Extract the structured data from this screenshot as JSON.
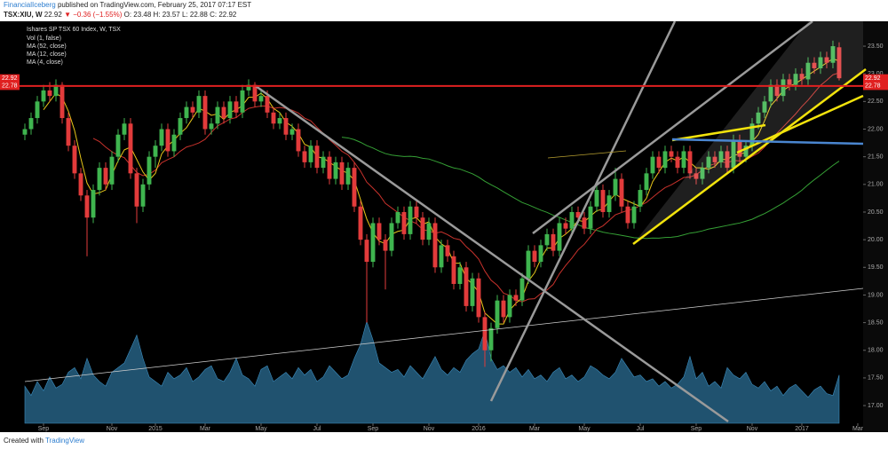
{
  "header": {
    "author": "FinancialIceberg",
    "published": "published on TradingView.com, February 25, 2017 07:17 EST",
    "symbol": "TSX:XIU, W",
    "last": "22.92",
    "change": "▼ −0.36 (−1.55%)",
    "ohlc": "O: 23.48 H: 23.57 L: 22.88 C: 22.92"
  },
  "footer": {
    "created": "Created with",
    "brand": "TradingView"
  },
  "chart_data": {
    "type": "candlestick",
    "title": "Ishares SP TSX 60 Index, W, TSX",
    "indicators": [
      {
        "name": "Vol (1, false)"
      },
      {
        "name": "MA (52, close)",
        "period": 52,
        "color": "#35a035"
      },
      {
        "name": "MA (12, close)",
        "period": 12,
        "color": "#c8322c"
      },
      {
        "name": "MA (4, close)",
        "period": 4,
        "color": "#e6c619"
      }
    ],
    "up_color": "#3fb54f",
    "down_color": "#e23b3b",
    "volume_color": "#2b6d94",
    "ylim": [
      16.68,
      23.95
    ],
    "xlim": [
      -4,
      134.86
    ],
    "grid": false,
    "yticks": [
      {
        "value": 17,
        "label": "17.00"
      },
      {
        "value": 17.5,
        "label": "17.50"
      },
      {
        "value": 18,
        "label": "18.00"
      },
      {
        "value": 18.5,
        "label": "18.50"
      },
      {
        "value": 19,
        "label": "19.00"
      },
      {
        "value": 19.5,
        "label": "19.50"
      },
      {
        "value": 20,
        "label": "20.00"
      },
      {
        "value": 20.5,
        "label": "20.50"
      },
      {
        "value": 21,
        "label": "21.00"
      },
      {
        "value": 21.5,
        "label": "21.50"
      },
      {
        "value": 22,
        "label": "22.00"
      },
      {
        "value": 22.5,
        "label": "22.50"
      },
      {
        "value": 23,
        "label": "23.00"
      },
      {
        "value": 23.5,
        "label": "23.50"
      }
    ],
    "xticks": [
      {
        "value": 3,
        "label": "Sep"
      },
      {
        "value": 14,
        "label": "Nov"
      },
      {
        "value": 21,
        "label": "2015"
      },
      {
        "value": 29,
        "label": "Mar"
      },
      {
        "value": 38,
        "label": "May"
      },
      {
        "value": 47,
        "label": "Jul"
      },
      {
        "value": 56,
        "label": "Sep"
      },
      {
        "value": 65,
        "label": "Nov"
      },
      {
        "value": 73,
        "label": "2016"
      },
      {
        "value": 82,
        "label": "Mar"
      },
      {
        "value": 90,
        "label": "May"
      },
      {
        "value": 99,
        "label": "Jul"
      },
      {
        "value": 108,
        "label": "Sep"
      },
      {
        "value": 117,
        "label": "Nov"
      },
      {
        "value": 125,
        "label": "2017"
      },
      {
        "value": 134,
        "label": "Mar"
      }
    ],
    "price_lines": [
      {
        "value": 22.92,
        "label": "22.92",
        "color": "#e02020",
        "line": false
      },
      {
        "value": 22.78,
        "label": "22.78",
        "color": "#e02020",
        "line": true
      }
    ],
    "ohlc": [
      [
        21.9,
        22.1,
        21.8,
        22.0
      ],
      [
        22.0,
        22.3,
        21.9,
        22.2
      ],
      [
        22.2,
        22.6,
        22.1,
        22.5
      ],
      [
        22.5,
        22.8,
        22.4,
        22.7
      ],
      [
        22.7,
        22.85,
        22.5,
        22.6
      ],
      [
        22.6,
        22.9,
        22.5,
        22.8
      ],
      [
        22.8,
        22.85,
        22.1,
        22.2
      ],
      [
        22.2,
        22.3,
        21.6,
        21.7
      ],
      [
        21.7,
        21.8,
        21.1,
        21.2
      ],
      [
        21.2,
        21.3,
        20.7,
        20.8
      ],
      [
        20.8,
        20.9,
        19.7,
        20.4
      ],
      [
        20.4,
        21.0,
        20.3,
        20.9
      ],
      [
        20.9,
        21.4,
        20.8,
        21.3
      ],
      [
        21.3,
        21.4,
        20.9,
        21.0
      ],
      [
        21.0,
        21.6,
        20.9,
        21.5
      ],
      [
        21.5,
        22.0,
        21.4,
        21.9
      ],
      [
        21.9,
        22.2,
        21.8,
        22.1
      ],
      [
        22.1,
        22.2,
        21.1,
        21.2
      ],
      [
        21.2,
        21.3,
        20.3,
        20.6
      ],
      [
        20.6,
        21.1,
        20.5,
        21.0
      ],
      [
        21.0,
        21.6,
        20.9,
        21.5
      ],
      [
        21.5,
        21.8,
        21.3,
        21.7
      ],
      [
        21.7,
        22.1,
        21.6,
        22.0
      ],
      [
        22.0,
        22.1,
        21.5,
        21.6
      ],
      [
        21.6,
        22.0,
        21.5,
        21.9
      ],
      [
        21.9,
        22.3,
        21.8,
        22.2
      ],
      [
        22.2,
        22.5,
        22.1,
        22.4
      ],
      [
        22.4,
        22.5,
        22.2,
        22.3
      ],
      [
        22.3,
        22.7,
        22.2,
        22.6
      ],
      [
        22.6,
        22.7,
        21.9,
        22.0
      ],
      [
        22.0,
        22.2,
        21.9,
        22.1
      ],
      [
        22.1,
        22.5,
        22.0,
        22.4
      ],
      [
        22.4,
        22.5,
        22.1,
        22.2
      ],
      [
        22.2,
        22.6,
        22.1,
        22.5
      ],
      [
        22.5,
        22.6,
        22.2,
        22.3
      ],
      [
        22.3,
        22.8,
        22.2,
        22.7
      ],
      [
        22.7,
        22.9,
        22.6,
        22.8
      ],
      [
        22.8,
        22.85,
        22.4,
        22.5
      ],
      [
        22.5,
        22.7,
        22.4,
        22.6
      ],
      [
        22.6,
        22.7,
        22.2,
        22.3
      ],
      [
        22.3,
        22.4,
        22.0,
        22.1
      ],
      [
        22.1,
        22.3,
        22.0,
        22.2
      ],
      [
        22.2,
        22.3,
        21.8,
        21.9
      ],
      [
        21.9,
        22.1,
        21.8,
        22.0
      ],
      [
        22.0,
        22.1,
        21.5,
        21.6
      ],
      [
        21.6,
        21.7,
        21.3,
        21.4
      ],
      [
        21.4,
        21.8,
        21.3,
        21.7
      ],
      [
        21.7,
        21.8,
        21.2,
        21.3
      ],
      [
        21.3,
        21.6,
        21.2,
        21.5
      ],
      [
        21.5,
        21.6,
        21.0,
        21.1
      ],
      [
        21.1,
        21.5,
        21.0,
        21.4
      ],
      [
        21.4,
        21.5,
        20.9,
        21.0
      ],
      [
        21.0,
        21.4,
        20.9,
        21.3
      ],
      [
        21.3,
        21.4,
        20.5,
        20.6
      ],
      [
        20.6,
        20.7,
        19.9,
        20.0
      ],
      [
        20.0,
        20.1,
        18.5,
        19.6
      ],
      [
        19.6,
        20.4,
        19.5,
        20.3
      ],
      [
        20.3,
        20.4,
        19.9,
        20.0
      ],
      [
        20.0,
        20.1,
        19.1,
        19.8
      ],
      [
        19.8,
        20.4,
        19.7,
        20.3
      ],
      [
        20.3,
        20.6,
        20.2,
        20.5
      ],
      [
        20.5,
        20.6,
        20.0,
        20.1
      ],
      [
        20.1,
        20.7,
        20.0,
        20.6
      ],
      [
        20.6,
        20.7,
        20.3,
        20.4
      ],
      [
        20.4,
        20.5,
        19.9,
        20.0
      ],
      [
        20.0,
        20.4,
        19.9,
        20.3
      ],
      [
        20.3,
        20.4,
        19.4,
        19.5
      ],
      [
        19.5,
        20.0,
        19.4,
        19.9
      ],
      [
        19.9,
        20.0,
        19.6,
        19.7
      ],
      [
        19.7,
        19.8,
        19.1,
        19.2
      ],
      [
        19.2,
        19.6,
        19.1,
        19.5
      ],
      [
        19.5,
        19.6,
        18.7,
        18.8
      ],
      [
        18.8,
        19.4,
        18.7,
        19.3
      ],
      [
        19.3,
        19.4,
        18.5,
        18.6
      ],
      [
        18.6,
        18.7,
        17.7,
        18.0
      ],
      [
        18.0,
        18.5,
        17.8,
        18.4
      ],
      [
        18.4,
        19.0,
        18.3,
        18.9
      ],
      [
        18.9,
        19.0,
        18.5,
        18.6
      ],
      [
        18.6,
        19.1,
        18.5,
        19.0
      ],
      [
        19.0,
        19.1,
        18.8,
        18.9
      ],
      [
        18.9,
        19.4,
        18.8,
        19.3
      ],
      [
        19.3,
        19.9,
        19.2,
        19.8
      ],
      [
        19.8,
        19.9,
        19.5,
        19.6
      ],
      [
        19.6,
        20.0,
        19.5,
        19.9
      ],
      [
        19.9,
        20.2,
        19.8,
        20.1
      ],
      [
        20.1,
        20.2,
        19.7,
        19.8
      ],
      [
        19.8,
        20.4,
        19.7,
        20.3
      ],
      [
        20.3,
        20.4,
        20.1,
        20.2
      ],
      [
        20.2,
        20.6,
        20.1,
        20.5
      ],
      [
        20.5,
        20.6,
        20.3,
        20.4
      ],
      [
        20.4,
        20.5,
        20.1,
        20.2
      ],
      [
        20.2,
        20.7,
        20.1,
        20.6
      ],
      [
        20.6,
        21.0,
        20.5,
        20.9
      ],
      [
        20.9,
        21.0,
        20.4,
        20.5
      ],
      [
        20.5,
        20.9,
        20.4,
        20.8
      ],
      [
        20.8,
        21.3,
        20.7,
        21.1
      ],
      [
        21.1,
        21.2,
        20.5,
        20.6
      ],
      [
        20.6,
        20.7,
        20.2,
        20.3
      ],
      [
        20.3,
        20.7,
        20.2,
        20.6
      ],
      [
        20.6,
        21.0,
        20.5,
        20.9
      ],
      [
        20.9,
        21.3,
        20.8,
        21.2
      ],
      [
        21.2,
        21.6,
        21.1,
        21.5
      ],
      [
        21.5,
        21.6,
        21.2,
        21.3
      ],
      [
        21.3,
        21.7,
        21.2,
        21.6
      ],
      [
        21.6,
        21.7,
        21.4,
        21.5
      ],
      [
        21.5,
        21.6,
        21.2,
        21.3
      ],
      [
        21.3,
        21.7,
        21.2,
        21.6
      ],
      [
        21.6,
        21.7,
        21.1,
        21.2
      ],
      [
        21.2,
        21.3,
        21.0,
        21.1
      ],
      [
        21.1,
        21.4,
        21.0,
        21.3
      ],
      [
        21.3,
        21.6,
        21.2,
        21.5
      ],
      [
        21.5,
        21.6,
        21.3,
        21.4
      ],
      [
        21.4,
        21.7,
        21.3,
        21.6
      ],
      [
        21.6,
        21.7,
        21.2,
        21.3
      ],
      [
        21.3,
        21.9,
        21.2,
        21.8
      ],
      [
        21.8,
        21.9,
        21.4,
        21.5
      ],
      [
        21.5,
        21.8,
        21.4,
        21.7
      ],
      [
        21.7,
        22.2,
        21.6,
        22.1
      ],
      [
        22.1,
        22.4,
        22.0,
        22.3
      ],
      [
        22.3,
        22.6,
        22.2,
        22.5
      ],
      [
        22.5,
        22.9,
        22.4,
        22.8
      ],
      [
        22.8,
        22.9,
        22.5,
        22.6
      ],
      [
        22.6,
        23.0,
        22.5,
        22.9
      ],
      [
        22.9,
        23.0,
        22.7,
        22.8
      ],
      [
        22.8,
        23.1,
        22.7,
        23.0
      ],
      [
        23.0,
        23.1,
        22.8,
        22.9
      ],
      [
        22.9,
        23.3,
        22.8,
        23.2
      ],
      [
        23.2,
        23.3,
        23.0,
        23.1
      ],
      [
        23.1,
        23.4,
        23.0,
        23.3
      ],
      [
        23.3,
        23.4,
        23.1,
        23.2
      ],
      [
        23.2,
        23.6,
        23.1,
        23.5
      ],
      [
        23.48,
        23.57,
        22.88,
        22.92
      ]
    ],
    "volume": [
      40,
      30,
      45,
      35,
      50,
      38,
      42,
      55,
      60,
      48,
      70,
      52,
      45,
      40,
      55,
      60,
      65,
      80,
      95,
      70,
      50,
      45,
      40,
      55,
      48,
      52,
      60,
      45,
      50,
      58,
      62,
      48,
      45,
      55,
      70,
      52,
      48,
      40,
      58,
      62,
      45,
      50,
      55,
      48,
      60,
      52,
      58,
      45,
      50,
      62,
      55,
      48,
      52,
      70,
      85,
      110,
      90,
      65,
      60,
      55,
      58,
      50,
      62,
      55,
      48,
      60,
      72,
      58,
      52,
      60,
      55,
      68,
      75,
      80,
      100,
      70,
      58,
      62,
      55,
      60,
      50,
      58,
      48,
      52,
      45,
      55,
      60,
      48,
      52,
      45,
      50,
      62,
      58,
      52,
      48,
      55,
      70,
      60,
      50,
      52,
      45,
      48,
      40,
      45,
      38,
      42,
      50,
      72,
      48,
      55,
      40,
      45,
      38,
      60,
      52,
      48,
      55,
      42,
      38,
      45,
      35,
      40,
      30,
      38,
      42,
      35,
      28,
      36,
      40,
      32,
      30,
      52
    ]
  }
}
